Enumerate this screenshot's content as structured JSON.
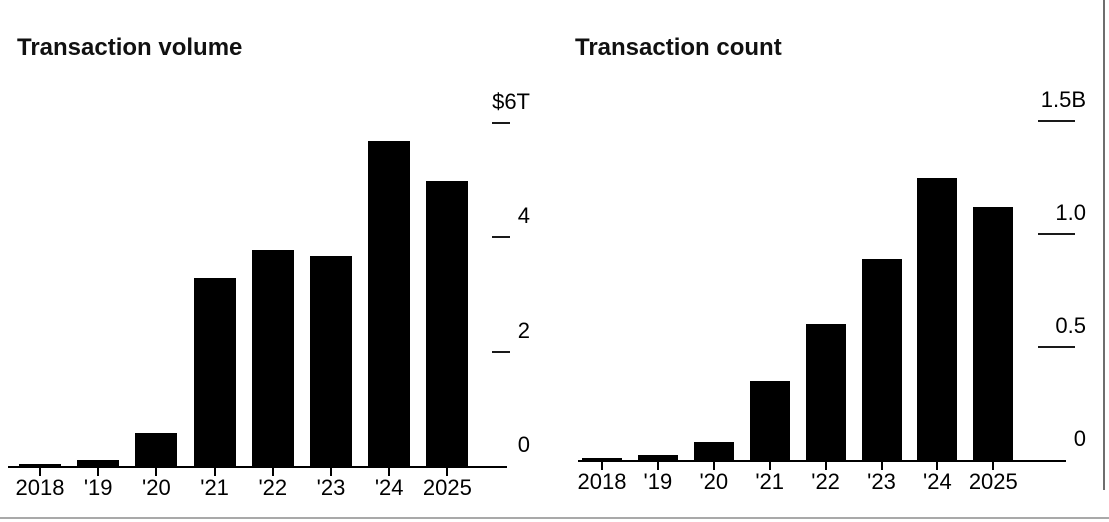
{
  "page": {
    "background_color": "#ffffff",
    "bar_color": "#000000",
    "text_color": "#111111",
    "bottom_rule_color": "#a9a9a9",
    "edge_divider_color": "#6e6e6e"
  },
  "chart_data": [
    {
      "type": "bar",
      "title": "Transaction volume",
      "categories": [
        "2018",
        "'19",
        "'20",
        "'21",
        "'22",
        "'23",
        "'24",
        "2025"
      ],
      "values": [
        0.04,
        0.11,
        0.57,
        3.28,
        3.77,
        3.68,
        5.69,
        4.99
      ],
      "unit": "trillions of US dollars",
      "ylim": [
        0,
        6
      ],
      "yticks": [
        {
          "value": 6,
          "label": "$6T",
          "dash": true
        },
        {
          "value": 4,
          "label": "4",
          "dash": true
        },
        {
          "value": 2,
          "label": "2",
          "dash": true
        },
        {
          "value": 0,
          "label": "0",
          "dash": false
        }
      ],
      "xlabel": "",
      "ylabel": "",
      "grid": false,
      "legend": false,
      "bar_color": "#000000",
      "ytick_side": "right"
    },
    {
      "type": "bar",
      "title": "Transaction count",
      "categories": [
        "2018",
        "'19",
        "'20",
        "'21",
        "'22",
        "'23",
        "'24",
        "2025"
      ],
      "values": [
        0.01,
        0.02,
        0.08,
        0.35,
        0.6,
        0.89,
        1.25,
        1.12
      ],
      "unit": "billions",
      "ylim": [
        0,
        1.5
      ],
      "yticks": [
        {
          "value": 1.5,
          "label": "1.5B",
          "dash": true
        },
        {
          "value": 1.0,
          "label": "1.0",
          "dash": true
        },
        {
          "value": 0.5,
          "label": "0.5",
          "dash": true
        },
        {
          "value": 0,
          "label": "0",
          "dash": false
        }
      ],
      "xlabel": "",
      "ylabel": "",
      "grid": false,
      "legend": false,
      "bar_color": "#000000",
      "ytick_side": "right"
    }
  ]
}
